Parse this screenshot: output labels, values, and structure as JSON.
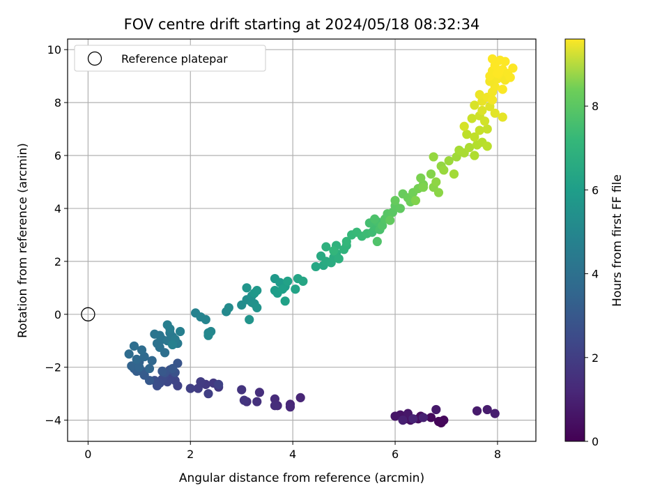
{
  "chart_data": {
    "type": "scatter",
    "title": "FOV centre drift starting at 2024/05/18 08:32:34",
    "xlabel": "Angular distance from reference (arcmin)",
    "ylabel": "Rotation from reference (arcmin)",
    "xlim": [
      -0.4,
      8.75
    ],
    "ylim": [
      -4.8,
      10.4
    ],
    "x_ticks": [
      0,
      2,
      4,
      6,
      8
    ],
    "y_ticks": [
      -4,
      -2,
      0,
      2,
      4,
      6,
      8,
      10
    ],
    "grid": true,
    "legend": {
      "placement": "upper-left",
      "entries": [
        {
          "label": "Reference platepar",
          "marker": "open-circle"
        }
      ]
    },
    "reference_point": {
      "x": 0,
      "y": 0
    },
    "colorbar": {
      "label": "Hours from first FF file",
      "range": [
        0,
        9.6
      ],
      "ticks": [
        0,
        2,
        4,
        6,
        8
      ],
      "colormap": "viridis"
    },
    "series": [
      {
        "points": [
          [
            6.9,
            -4.1,
            0.1
          ],
          [
            6.85,
            -4.05,
            0.15
          ],
          [
            6.95,
            -4.0,
            0.2
          ],
          [
            6.7,
            -3.9,
            0.25
          ],
          [
            6.5,
            -3.85,
            0.3
          ],
          [
            6.45,
            -3.95,
            0.35
          ],
          [
            6.3,
            -4.0,
            0.4
          ],
          [
            6.2,
            -3.95,
            0.45
          ],
          [
            6.1,
            -3.8,
            0.5
          ],
          [
            6.0,
            -3.85,
            0.55
          ],
          [
            6.25,
            -3.75,
            0.6
          ],
          [
            6.8,
            -3.6,
            0.65
          ],
          [
            7.6,
            -3.65,
            0.7
          ],
          [
            7.8,
            -3.6,
            0.75
          ],
          [
            7.95,
            -3.75,
            0.8
          ],
          [
            6.15,
            -4.0,
            0.85
          ],
          [
            6.55,
            -3.9,
            0.9
          ],
          [
            6.35,
            -3.95,
            0.95
          ],
          [
            4.15,
            -3.15,
            1.0
          ],
          [
            3.95,
            -3.4,
            1.05
          ],
          [
            3.95,
            -3.5,
            1.1
          ],
          [
            3.7,
            -3.45,
            1.15
          ],
          [
            3.65,
            -3.2,
            1.2
          ],
          [
            3.65,
            -3.45,
            1.25
          ],
          [
            3.35,
            -2.95,
            1.3
          ],
          [
            3.3,
            -3.3,
            1.35
          ],
          [
            3.1,
            -3.3,
            1.4
          ],
          [
            3.0,
            -2.85,
            1.45
          ],
          [
            3.05,
            -3.25,
            1.5
          ],
          [
            2.55,
            -2.75,
            1.55
          ],
          [
            2.45,
            -2.6,
            1.6
          ],
          [
            2.3,
            -2.65,
            1.65
          ],
          [
            2.2,
            -2.55,
            1.7
          ],
          [
            2.15,
            -2.8,
            1.75
          ],
          [
            2.35,
            -3.0,
            1.8
          ],
          [
            2.0,
            -2.8,
            1.85
          ],
          [
            2.55,
            -2.65,
            1.9
          ],
          [
            1.75,
            -2.7,
            1.95
          ],
          [
            1.7,
            -2.5,
            2.0
          ],
          [
            1.6,
            -2.4,
            2.05
          ],
          [
            1.55,
            -2.55,
            2.1
          ],
          [
            1.5,
            -2.3,
            2.15
          ],
          [
            1.45,
            -2.45,
            2.2
          ],
          [
            1.4,
            -2.6,
            2.25
          ],
          [
            1.35,
            -2.7,
            2.3
          ],
          [
            1.3,
            -2.5,
            2.35
          ],
          [
            1.6,
            -2.1,
            2.4
          ],
          [
            1.7,
            -2.2,
            2.45
          ],
          [
            1.5,
            -2.2,
            2.5
          ],
          [
            1.75,
            -1.85,
            2.55
          ],
          [
            1.65,
            -2.05,
            2.6
          ],
          [
            1.45,
            -2.15,
            2.65
          ],
          [
            1.2,
            -2.5,
            2.7
          ],
          [
            1.1,
            -2.3,
            2.75
          ],
          [
            1.05,
            -2.15,
            2.8
          ],
          [
            0.95,
            -2.15,
            2.85
          ],
          [
            0.9,
            -2.05,
            2.9
          ],
          [
            0.9,
            -1.95,
            2.95
          ],
          [
            1.0,
            -1.8,
            3.0
          ],
          [
            0.85,
            -1.95,
            3.05
          ],
          [
            1.0,
            -2.0,
            3.1
          ],
          [
            1.2,
            -2.05,
            3.15
          ],
          [
            1.25,
            -1.75,
            3.2
          ],
          [
            0.95,
            -1.7,
            3.25
          ],
          [
            1.1,
            -1.6,
            3.3
          ],
          [
            0.8,
            -1.5,
            3.35
          ],
          [
            1.05,
            -1.35,
            3.4
          ],
          [
            0.9,
            -1.2,
            3.45
          ],
          [
            1.5,
            -1.45,
            3.5
          ],
          [
            1.4,
            -1.25,
            3.55
          ],
          [
            1.35,
            -1.1,
            3.6
          ],
          [
            1.45,
            -0.95,
            3.65
          ],
          [
            1.3,
            -0.75,
            3.7
          ],
          [
            1.4,
            -0.8,
            3.75
          ],
          [
            1.55,
            -1.0,
            3.8
          ],
          [
            1.6,
            -0.7,
            3.85
          ],
          [
            1.65,
            -0.85,
            3.9
          ],
          [
            1.75,
            -1.1,
            3.95
          ],
          [
            1.7,
            -0.95,
            4.0
          ],
          [
            1.6,
            -0.55,
            4.05
          ],
          [
            1.55,
            -0.4,
            4.1
          ],
          [
            1.8,
            -0.65,
            4.15
          ],
          [
            1.65,
            -1.15,
            4.2
          ],
          [
            2.1,
            0.05,
            4.25
          ],
          [
            2.2,
            -0.1,
            4.3
          ],
          [
            2.3,
            -0.2,
            4.35
          ],
          [
            2.35,
            -0.7,
            4.4
          ],
          [
            2.4,
            -0.65,
            4.45
          ],
          [
            2.35,
            -0.8,
            4.5
          ],
          [
            2.7,
            0.1,
            4.55
          ],
          [
            2.75,
            0.25,
            4.6
          ],
          [
            3.0,
            0.35,
            4.65
          ],
          [
            3.1,
            0.55,
            4.7
          ],
          [
            3.2,
            0.45,
            4.75
          ],
          [
            3.2,
            0.7,
            4.8
          ],
          [
            3.25,
            0.4,
            4.85
          ],
          [
            3.3,
            0.25,
            4.9
          ],
          [
            3.15,
            -0.2,
            4.95
          ],
          [
            3.1,
            1.0,
            5.0
          ],
          [
            3.25,
            0.8,
            5.05
          ],
          [
            3.3,
            0.9,
            5.1
          ],
          [
            3.65,
            1.35,
            5.15
          ],
          [
            3.75,
            1.2,
            5.2
          ],
          [
            3.85,
            1.05,
            5.25
          ],
          [
            3.65,
            0.9,
            5.3
          ],
          [
            3.7,
            0.8,
            5.35
          ],
          [
            3.8,
            0.95,
            5.4
          ],
          [
            3.85,
            0.5,
            5.45
          ],
          [
            3.9,
            1.25,
            5.5
          ],
          [
            4.05,
            0.95,
            5.55
          ],
          [
            4.1,
            1.35,
            5.6
          ],
          [
            4.2,
            1.25,
            5.65
          ],
          [
            4.45,
            1.8,
            5.7
          ],
          [
            4.6,
            1.85,
            5.75
          ],
          [
            4.55,
            2.2,
            5.8
          ],
          [
            4.65,
            2.0,
            5.85
          ],
          [
            4.75,
            1.95,
            5.9
          ],
          [
            4.8,
            2.15,
            5.95
          ],
          [
            4.85,
            2.3,
            6.0
          ],
          [
            4.9,
            2.1,
            6.05
          ],
          [
            4.65,
            2.55,
            6.1
          ],
          [
            4.85,
            2.6,
            6.15
          ],
          [
            5.0,
            2.45,
            6.2
          ],
          [
            5.05,
            2.6,
            6.25
          ],
          [
            4.8,
            2.4,
            6.3
          ],
          [
            5.05,
            2.75,
            6.35
          ],
          [
            5.15,
            3.0,
            6.4
          ],
          [
            5.25,
            3.1,
            6.45
          ],
          [
            5.35,
            2.95,
            6.5
          ],
          [
            5.45,
            3.05,
            6.55
          ],
          [
            5.55,
            3.1,
            6.6
          ],
          [
            5.6,
            3.3,
            6.65
          ],
          [
            5.5,
            3.45,
            6.7
          ],
          [
            5.65,
            3.5,
            6.75
          ],
          [
            5.7,
            3.2,
            6.8
          ],
          [
            5.6,
            3.6,
            6.85
          ],
          [
            5.65,
            2.75,
            6.9
          ],
          [
            5.75,
            3.35,
            6.95
          ],
          [
            5.8,
            3.6,
            7.0
          ],
          [
            5.85,
            3.8,
            7.05
          ],
          [
            5.95,
            3.85,
            7.1
          ],
          [
            6.0,
            4.1,
            7.15
          ],
          [
            6.1,
            4.0,
            7.2
          ],
          [
            5.9,
            3.55,
            7.25
          ],
          [
            6.0,
            4.3,
            7.3
          ],
          [
            6.15,
            4.55,
            7.35
          ],
          [
            6.25,
            4.4,
            7.4
          ],
          [
            6.3,
            4.25,
            7.45
          ],
          [
            6.35,
            4.6,
            7.5
          ],
          [
            6.45,
            4.75,
            7.55
          ],
          [
            6.55,
            4.9,
            7.6
          ],
          [
            6.5,
            5.15,
            7.65
          ],
          [
            6.55,
            4.8,
            7.7
          ],
          [
            6.4,
            4.3,
            7.75
          ],
          [
            6.7,
            5.3,
            7.8
          ],
          [
            6.75,
            4.8,
            7.85
          ],
          [
            6.85,
            4.6,
            7.9
          ],
          [
            6.8,
            5.0,
            7.95
          ],
          [
            6.9,
            5.6,
            8.0
          ],
          [
            6.75,
            5.95,
            8.05
          ],
          [
            6.95,
            5.45,
            8.1
          ],
          [
            7.05,
            5.8,
            8.15
          ],
          [
            7.2,
            5.95,
            8.2
          ],
          [
            7.15,
            5.3,
            8.25
          ],
          [
            7.25,
            6.2,
            8.3
          ],
          [
            7.35,
            6.1,
            8.35
          ],
          [
            7.45,
            6.3,
            8.4
          ],
          [
            7.55,
            6.0,
            8.45
          ],
          [
            7.6,
            6.4,
            8.5
          ],
          [
            7.7,
            6.5,
            8.55
          ],
          [
            7.8,
            6.35,
            8.6
          ],
          [
            7.4,
            6.8,
            8.65
          ],
          [
            7.55,
            6.7,
            8.7
          ],
          [
            7.65,
            6.95,
            8.75
          ],
          [
            7.8,
            7.0,
            8.8
          ],
          [
            7.5,
            7.4,
            8.85
          ],
          [
            7.65,
            7.5,
            8.9
          ],
          [
            7.75,
            7.3,
            8.95
          ],
          [
            7.35,
            7.1,
            9.0
          ],
          [
            7.55,
            7.9,
            9.05
          ],
          [
            7.7,
            7.7,
            9.1
          ],
          [
            7.85,
            7.85,
            9.15
          ],
          [
            7.95,
            7.6,
            9.2
          ],
          [
            8.1,
            7.45,
            9.25
          ],
          [
            7.7,
            8.05,
            9.3
          ],
          [
            7.65,
            8.3,
            9.35
          ],
          [
            7.8,
            8.2,
            9.4
          ],
          [
            7.9,
            8.4,
            9.45
          ],
          [
            7.95,
            8.6,
            9.5
          ],
          [
            8.1,
            8.5,
            9.55
          ],
          [
            7.85,
            8.8,
            9.45
          ],
          [
            8.0,
            8.9,
            9.5
          ],
          [
            8.05,
            9.05,
            9.55
          ],
          [
            8.15,
            8.85,
            9.5
          ],
          [
            7.9,
            9.2,
            9.55
          ],
          [
            8.1,
            9.25,
            9.6
          ],
          [
            8.2,
            9.1,
            9.55
          ],
          [
            7.95,
            9.4,
            9.6
          ],
          [
            8.05,
            9.6,
            9.6
          ],
          [
            7.9,
            9.65,
            9.6
          ],
          [
            8.3,
            9.3,
            9.6
          ],
          [
            8.15,
            9.55,
            9.6
          ],
          [
            7.85,
            9.0,
            9.55
          ],
          [
            8.25,
            8.95,
            9.55
          ],
          [
            8.0,
            9.1,
            9.6
          ],
          [
            7.9,
            8.1,
            9.45
          ]
        ]
      }
    ]
  }
}
